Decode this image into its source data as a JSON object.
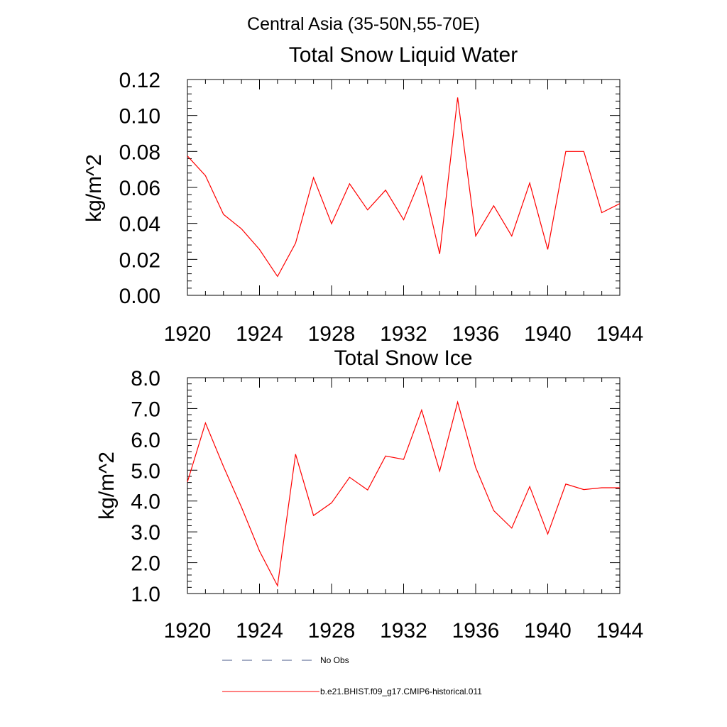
{
  "main_title": "Central Asia (35-50N,55-70E)",
  "chart_data": [
    {
      "type": "line",
      "title": "Total Snow Liquid Water",
      "xlabel": "",
      "ylabel": "kg/m^2",
      "xlim": [
        1920,
        1944
      ],
      "ylim": [
        0.0,
        0.12
      ],
      "x_ticks": [
        1920,
        1924,
        1928,
        1932,
        1936,
        1940,
        1944
      ],
      "y_ticks": [
        "0.00",
        "0.02",
        "0.04",
        "0.06",
        "0.08",
        "0.10",
        "0.12"
      ],
      "x": [
        1920,
        1921,
        1922,
        1923,
        1924,
        1925,
        1926,
        1927,
        1928,
        1929,
        1930,
        1931,
        1932,
        1933,
        1934,
        1935,
        1936,
        1937,
        1938,
        1939,
        1940,
        1941,
        1942,
        1943,
        1944
      ],
      "series": [
        {
          "name": "b.e21.BHIST.f09_g17.CMIP6-historical.011",
          "color": "#ff0000",
          "values": [
            0.0775,
            0.0665,
            0.045,
            0.037,
            0.0255,
            0.0105,
            0.029,
            0.0655,
            0.0398,
            0.062,
            0.0475,
            0.0585,
            0.042,
            0.0663,
            0.023,
            0.11,
            0.033,
            0.0498,
            0.033,
            0.0625,
            0.0255,
            0.08,
            0.08,
            0.046,
            0.051
          ]
        }
      ],
      "grid": false
    },
    {
      "type": "line",
      "title": "Total Snow Ice",
      "xlabel": "",
      "ylabel": "kg/m^2",
      "xlim": [
        1920,
        1944
      ],
      "ylim": [
        1.0,
        8.0
      ],
      "x_ticks": [
        1920,
        1924,
        1928,
        1932,
        1936,
        1940,
        1944
      ],
      "y_ticks": [
        "1.0",
        "2.0",
        "3.0",
        "4.0",
        "5.0",
        "6.0",
        "7.0",
        "8.0"
      ],
      "x": [
        1920,
        1921,
        1922,
        1923,
        1924,
        1925,
        1926,
        1927,
        1928,
        1929,
        1930,
        1931,
        1932,
        1933,
        1934,
        1935,
        1936,
        1937,
        1938,
        1939,
        1940,
        1941,
        1942,
        1943,
        1944
      ],
      "series": [
        {
          "name": "b.e21.BHIST.f09_g17.CMIP6-historical.011",
          "color": "#ff0000",
          "values": [
            4.62,
            6.53,
            5.12,
            3.8,
            2.38,
            1.25,
            5.52,
            3.53,
            3.94,
            4.77,
            4.36,
            5.46,
            5.35,
            6.95,
            4.97,
            7.21,
            5.09,
            3.69,
            3.12,
            4.47,
            2.93,
            4.55,
            4.37,
            4.43,
            4.43
          ]
        }
      ],
      "grid": false
    }
  ],
  "legend": [
    {
      "label": "No Obs",
      "color": "#4a5a8a",
      "style": "dashed"
    },
    {
      "label": "b.e21.BHIST.f09_g17.CMIP6-historical.011",
      "color": "#ff0000",
      "style": "solid"
    }
  ]
}
